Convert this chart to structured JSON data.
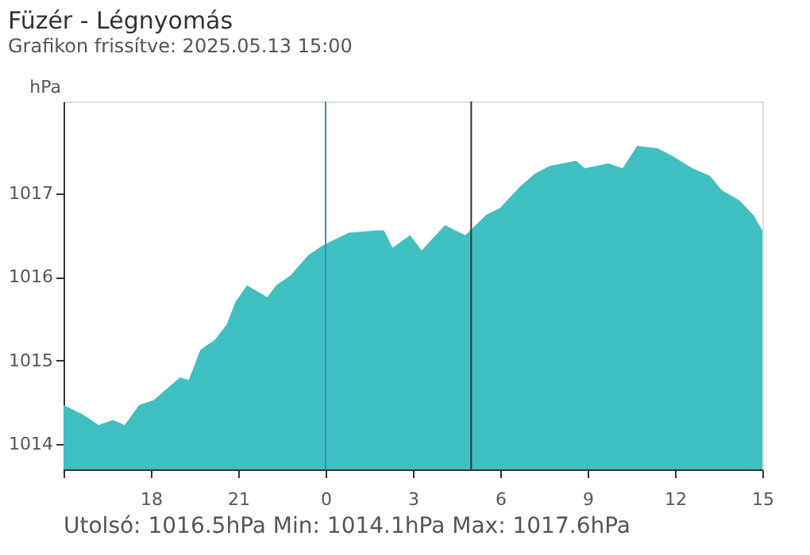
{
  "chart_data": {
    "type": "area",
    "title": "Füzér - Légnyomás",
    "subtitle": "Grafikon frissítve: 2025.05.13 15:00",
    "ylabel": "hPa",
    "x": [
      "2025-05-12T15:00",
      "2025-05-12T15:42",
      "2025-05-12T16:12",
      "2025-05-12T16:42",
      "2025-05-12T17:06",
      "2025-05-12T17:36",
      "2025-05-12T18:06",
      "2025-05-12T18:42",
      "2025-05-12T19:00",
      "2025-05-12T19:18",
      "2025-05-12T19:42",
      "2025-05-12T20:12",
      "2025-05-12T20:36",
      "2025-05-12T20:54",
      "2025-05-12T21:18",
      "2025-05-12T22:00",
      "2025-05-12T22:18",
      "2025-05-12T22:48",
      "2025-05-12T23:24",
      "2025-05-12T23:54",
      "2025-05-13T00:48",
      "2025-05-13T01:48",
      "2025-05-13T02:00",
      "2025-05-13T02:18",
      "2025-05-13T02:54",
      "2025-05-13T03:18",
      "2025-05-13T04:06",
      "2025-05-13T04:48",
      "2025-05-13T05:30",
      "2025-05-13T06:00",
      "2025-05-13T06:42",
      "2025-05-13T07:12",
      "2025-05-13T07:42",
      "2025-05-13T08:36",
      "2025-05-13T08:54",
      "2025-05-13T09:42",
      "2025-05-13T10:12",
      "2025-05-13T10:42",
      "2025-05-13T11:24",
      "2025-05-13T11:54",
      "2025-05-13T12:36",
      "2025-05-13T13:12",
      "2025-05-13T13:36",
      "2025-05-13T14:12",
      "2025-05-13T14:42",
      "2025-05-13T15:00"
    ],
    "series": [
      {
        "color": "#40bfc1",
        "values": [
          1014.47,
          1014.35,
          1014.23,
          1014.29,
          1014.23,
          1014.47,
          1014.53,
          1014.71,
          1014.8,
          1014.77,
          1015.13,
          1015.25,
          1015.43,
          1015.7,
          1015.9,
          1015.76,
          1015.9,
          1016.02,
          1016.26,
          1016.38,
          1016.53,
          1016.56,
          1016.56,
          1016.35,
          1016.5,
          1016.32,
          1016.62,
          1016.5,
          1016.74,
          1016.83,
          1017.09,
          1017.24,
          1017.33,
          1017.39,
          1017.3,
          1017.36,
          1017.3,
          1017.57,
          1017.54,
          1017.45,
          1017.3,
          1017.21,
          1017.04,
          1016.92,
          1016.74,
          1016.56
        ]
      }
    ],
    "xlim": [
      "2025-05-12T15:00",
      "2025-05-13T15:00"
    ],
    "ylim": [
      1013.7,
      1018.1
    ],
    "xticks": [
      {
        "value": "2025-05-12T15:00",
        "label": null
      },
      {
        "value": "2025-05-12T18:00",
        "label": "18"
      },
      {
        "value": "2025-05-12T21:00",
        "label": "21"
      },
      {
        "value": "2025-05-13T00:00",
        "label": "0"
      },
      {
        "value": "2025-05-13T03:00",
        "label": "3"
      },
      {
        "value": "2025-05-13T06:00",
        "label": "6"
      },
      {
        "value": "2025-05-13T09:00",
        "label": "9"
      },
      {
        "value": "2025-05-13T12:00",
        "label": "12"
      },
      {
        "value": "2025-05-13T15:00",
        "label": "15"
      }
    ],
    "yticks": [
      1014,
      1015,
      1016,
      1017
    ],
    "ref_lines": [
      {
        "axis": "x",
        "value": "2025-05-13T00:00",
        "color": "#2a8fd6"
      },
      {
        "axis": "x",
        "value": "2025-05-13T05:00",
        "color": "#333333"
      }
    ],
    "annotations": [
      "Utolsó: 1016.5hPa",
      "Min: 1014.1hPa",
      "Max: 1017.6hPa"
    ],
    "grid": false
  }
}
